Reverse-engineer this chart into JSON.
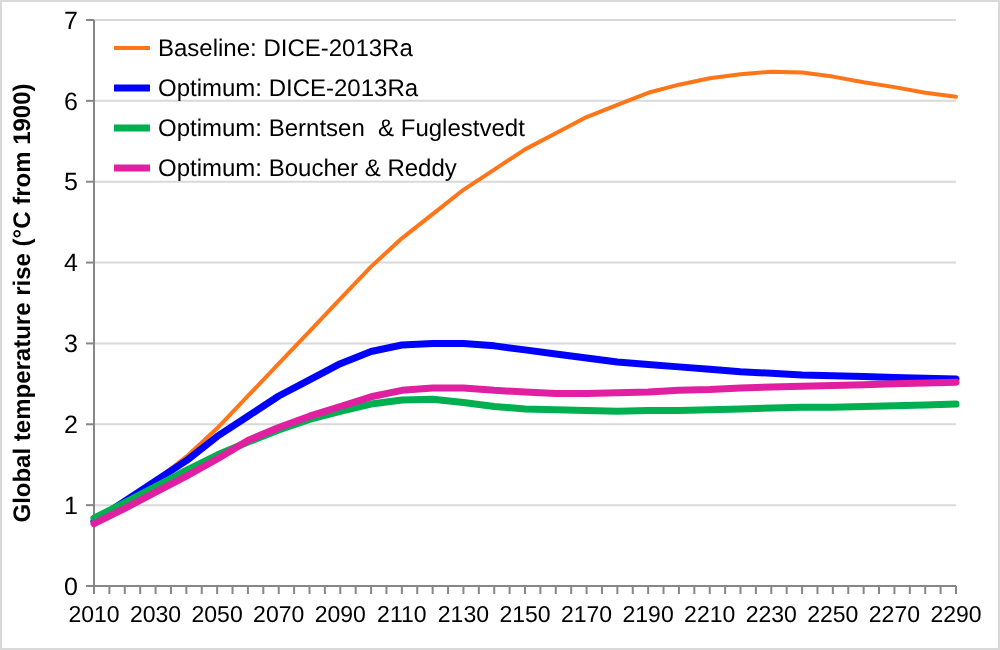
{
  "chart_data": {
    "type": "line",
    "ylabel": "Global temperature rise (°C from 1900)",
    "x": [
      2010,
      2020,
      2030,
      2040,
      2050,
      2060,
      2070,
      2080,
      2090,
      2100,
      2110,
      2120,
      2130,
      2140,
      2150,
      2160,
      2170,
      2180,
      2190,
      2200,
      2210,
      2220,
      2230,
      2240,
      2250,
      2260,
      2270,
      2280,
      2290
    ],
    "xlim": [
      2010,
      2290
    ],
    "xticks": [
      2010,
      {
        "value": 2015,
        "label": null
      },
      {
        "value": 2020,
        "label": null
      },
      {
        "value": 2025,
        "label": null
      },
      2030,
      {
        "value": 2035,
        "label": null
      },
      {
        "value": 2040,
        "label": null
      },
      {
        "value": 2045,
        "label": null
      },
      2050,
      {
        "value": 2055,
        "label": null
      },
      {
        "value": 2060,
        "label": null
      },
      {
        "value": 2065,
        "label": null
      },
      2070,
      {
        "value": 2075,
        "label": null
      },
      {
        "value": 2080,
        "label": null
      },
      {
        "value": 2085,
        "label": null
      },
      2090,
      {
        "value": 2095,
        "label": null
      },
      {
        "value": 2100,
        "label": null
      },
      {
        "value": 2105,
        "label": null
      },
      2110,
      {
        "value": 2115,
        "label": null
      },
      {
        "value": 2120,
        "label": null
      },
      {
        "value": 2125,
        "label": null
      },
      2130,
      {
        "value": 2135,
        "label": null
      },
      {
        "value": 2140,
        "label": null
      },
      {
        "value": 2145,
        "label": null
      },
      2150,
      {
        "value": 2155,
        "label": null
      },
      {
        "value": 2160,
        "label": null
      },
      {
        "value": 2165,
        "label": null
      },
      2170,
      {
        "value": 2175,
        "label": null
      },
      {
        "value": 2180,
        "label": null
      },
      {
        "value": 2185,
        "label": null
      },
      2190,
      {
        "value": 2195,
        "label": null
      },
      {
        "value": 2200,
        "label": null
      },
      {
        "value": 2205,
        "label": null
      },
      2210,
      {
        "value": 2215,
        "label": null
      },
      {
        "value": 2220,
        "label": null
      },
      {
        "value": 2225,
        "label": null
      },
      2230,
      {
        "value": 2235,
        "label": null
      },
      {
        "value": 2240,
        "label": null
      },
      {
        "value": 2245,
        "label": null
      },
      2250,
      {
        "value": 2255,
        "label": null
      },
      {
        "value": 2260,
        "label": null
      },
      {
        "value": 2265,
        "label": null
      },
      2270,
      {
        "value": 2275,
        "label": null
      },
      {
        "value": 2280,
        "label": null
      },
      {
        "value": 2285,
        "label": null
      },
      2290
    ],
    "ylim": [
      0,
      7
    ],
    "yticks": [
      0,
      1,
      2,
      3,
      4,
      5,
      6,
      7
    ],
    "grid": "y",
    "legend": "top left",
    "marker": "none",
    "line_style": "solid",
    "series": [
      {
        "name": "Baseline: DICE-2013Ra",
        "color": "#ff7518",
        "values": [
          0.8,
          1.05,
          1.3,
          1.6,
          1.95,
          2.35,
          2.75,
          3.15,
          3.55,
          3.95,
          4.3,
          4.6,
          4.9,
          5.15,
          5.4,
          5.6,
          5.8,
          5.95,
          6.1,
          6.2,
          6.28,
          6.33,
          6.36,
          6.35,
          6.3,
          6.23,
          6.17,
          6.1,
          6.05
        ]
      },
      {
        "name": "Optimum: DICE-2013Ra",
        "color": "#0000ff",
        "values": [
          0.8,
          1.05,
          1.3,
          1.55,
          1.85,
          2.1,
          2.35,
          2.55,
          2.75,
          2.9,
          2.98,
          3.0,
          3.0,
          2.97,
          2.92,
          2.87,
          2.82,
          2.77,
          2.74,
          2.71,
          2.68,
          2.65,
          2.63,
          2.61,
          2.6,
          2.59,
          2.58,
          2.57,
          2.56
        ]
      },
      {
        "name": "Optimum: Berntsen  & Fuglestvedt",
        "color": "#00b050",
        "values": [
          0.84,
          1.03,
          1.23,
          1.43,
          1.62,
          1.78,
          1.93,
          2.06,
          2.16,
          2.25,
          2.3,
          2.31,
          2.27,
          2.22,
          2.19,
          2.18,
          2.17,
          2.16,
          2.17,
          2.17,
          2.18,
          2.19,
          2.2,
          2.21,
          2.21,
          2.22,
          2.23,
          2.24,
          2.25
        ]
      },
      {
        "name": "Optimum: Boucher & Reddy",
        "color": "#e020a0",
        "values": [
          0.77,
          0.96,
          1.16,
          1.36,
          1.57,
          1.8,
          1.96,
          2.1,
          2.22,
          2.34,
          2.42,
          2.45,
          2.45,
          2.42,
          2.4,
          2.38,
          2.38,
          2.39,
          2.4,
          2.42,
          2.43,
          2.45,
          2.46,
          2.47,
          2.48,
          2.49,
          2.5,
          2.51,
          2.52
        ]
      }
    ]
  }
}
